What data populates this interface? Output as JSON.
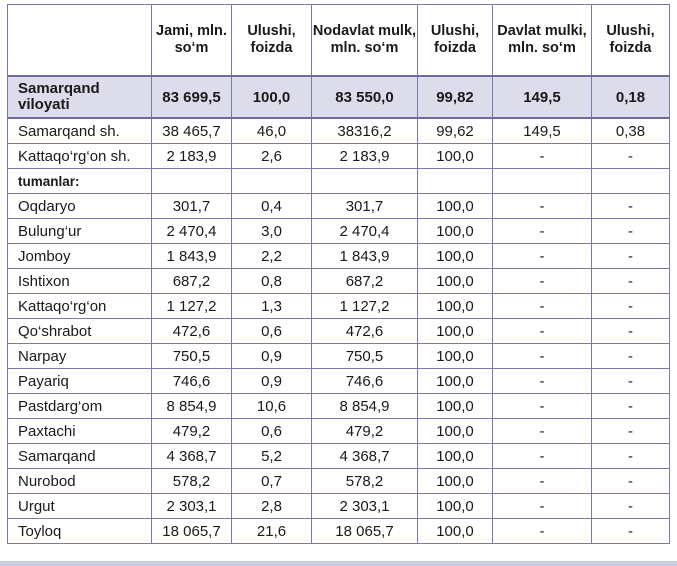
{
  "header": {
    "col0": "",
    "col1": "Jami, mln. so‘m",
    "col2": "Ulushi, foizda",
    "col3": "Nodavlat mulk, mln. so‘m",
    "col4": "Ulushi, foizda",
    "col5": "Davlat mulki, mln. so‘m",
    "col6": "Ulushi, foizda"
  },
  "total": {
    "name": "Samarqand viloyati",
    "jami": "83 699,5",
    "jami_ulush": "100,0",
    "nodavlat": "83 550,0",
    "nodavlat_ulush": "99,82",
    "davlat": "149,5",
    "davlat_ulush": "0,18"
  },
  "cities": [
    {
      "name": "Samarqand sh.",
      "jami": "38 465,7",
      "jami_ulush": "46,0",
      "nodavlat": "38316,2",
      "nodavlat_ulush": "99,62",
      "davlat": "149,5",
      "davlat_ulush": "0,38"
    },
    {
      "name": "Kattaqo‘rg‘on sh.",
      "jami": "2 183,9",
      "jami_ulush": "2,6",
      "nodavlat": "2 183,9",
      "nodavlat_ulush": "100,0",
      "davlat": "-",
      "davlat_ulush": "-"
    }
  ],
  "section_label": "tumanlar:",
  "districts": [
    {
      "name": "Oqdaryo",
      "jami": "301,7",
      "jami_ulush": "0,4",
      "nodavlat": "301,7",
      "nodavlat_ulush": "100,0",
      "davlat": "-",
      "davlat_ulush": "-"
    },
    {
      "name": "Bulung‘ur",
      "jami": "2 470,4",
      "jami_ulush": "3,0",
      "nodavlat": "2 470,4",
      "nodavlat_ulush": "100,0",
      "davlat": "-",
      "davlat_ulush": "-"
    },
    {
      "name": "Jomboy",
      "jami": "1 843,9",
      "jami_ulush": "2,2",
      "nodavlat": "1 843,9",
      "nodavlat_ulush": "100,0",
      "davlat": "-",
      "davlat_ulush": "-"
    },
    {
      "name": "Ishtixon",
      "jami": "687,2",
      "jami_ulush": "0,8",
      "nodavlat": "687,2",
      "nodavlat_ulush": "100,0",
      "davlat": "-",
      "davlat_ulush": "-"
    },
    {
      "name": "Kattaqo‘rg‘on",
      "jami": "1 127,2",
      "jami_ulush": "1,3",
      "nodavlat": "1 127,2",
      "nodavlat_ulush": "100,0",
      "davlat": "-",
      "davlat_ulush": "-"
    },
    {
      "name": "Qo‘shrabot",
      "jami": "472,6",
      "jami_ulush": "0,6",
      "nodavlat": "472,6",
      "nodavlat_ulush": "100,0",
      "davlat": "-",
      "davlat_ulush": "-"
    },
    {
      "name": "Narpay",
      "jami": "750,5",
      "jami_ulush": "0,9",
      "nodavlat": "750,5",
      "nodavlat_ulush": "100,0",
      "davlat": "-",
      "davlat_ulush": "-"
    },
    {
      "name": "Payariq",
      "jami": "746,6",
      "jami_ulush": "0,9",
      "nodavlat": "746,6",
      "nodavlat_ulush": "100,0",
      "davlat": "-",
      "davlat_ulush": "-"
    },
    {
      "name": "Pastdarg‘om",
      "jami": "8 854,9",
      "jami_ulush": "10,6",
      "nodavlat": "8 854,9",
      "nodavlat_ulush": "100,0",
      "davlat": "-",
      "davlat_ulush": "-"
    },
    {
      "name": "Paxtachi",
      "jami": "479,2",
      "jami_ulush": "0,6",
      "nodavlat": "479,2",
      "nodavlat_ulush": "100,0",
      "davlat": "-",
      "davlat_ulush": "-"
    },
    {
      "name": "Samarqand",
      "jami": "4 368,7",
      "jami_ulush": "5,2",
      "nodavlat": "4 368,7",
      "nodavlat_ulush": "100,0",
      "davlat": "-",
      "davlat_ulush": "-"
    },
    {
      "name": "Nurobod",
      "jami": "578,2",
      "jami_ulush": "0,7",
      "nodavlat": "578,2",
      "nodavlat_ulush": "100,0",
      "davlat": "-",
      "davlat_ulush": "-"
    },
    {
      "name": "Urgut",
      "jami": "2 303,1",
      "jami_ulush": "2,8",
      "nodavlat": "2 303,1",
      "nodavlat_ulush": "100,0",
      "davlat": "-",
      "davlat_ulush": "-"
    },
    {
      "name": "Toyloq",
      "jami": "18 065,7",
      "jami_ulush": "21,6",
      "nodavlat": "18 065,7",
      "nodavlat_ulush": "100,0",
      "davlat": "-",
      "davlat_ulush": "-"
    }
  ]
}
